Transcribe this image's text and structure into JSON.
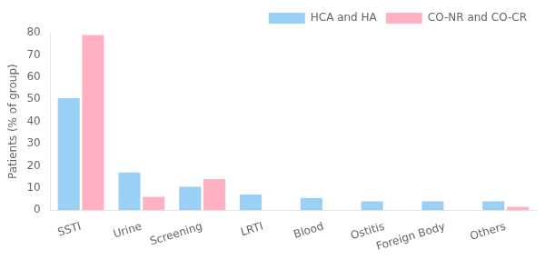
{
  "chart_data": {
    "type": "bar",
    "categories": [
      "SSTI",
      "Urine",
      "Screening",
      "LRTI",
      "Blood",
      "Ostitis",
      "Foreign Body",
      "Others"
    ],
    "series": [
      {
        "name": "HCA and HA",
        "values": [
          50.5,
          17,
          10.5,
          7,
          5.5,
          4,
          4,
          4
        ]
      },
      {
        "name": "CO-NR and CO-CR",
        "values": [
          79,
          6,
          14,
          0,
          0,
          0,
          0,
          1.5
        ]
      }
    ],
    "ylabel": "Patients (% of group)",
    "ylim": [
      0,
      80
    ],
    "yticks": [
      0,
      10,
      20,
      30,
      40,
      50,
      60,
      70,
      80
    ],
    "grid": false,
    "legend": "upper right"
  }
}
